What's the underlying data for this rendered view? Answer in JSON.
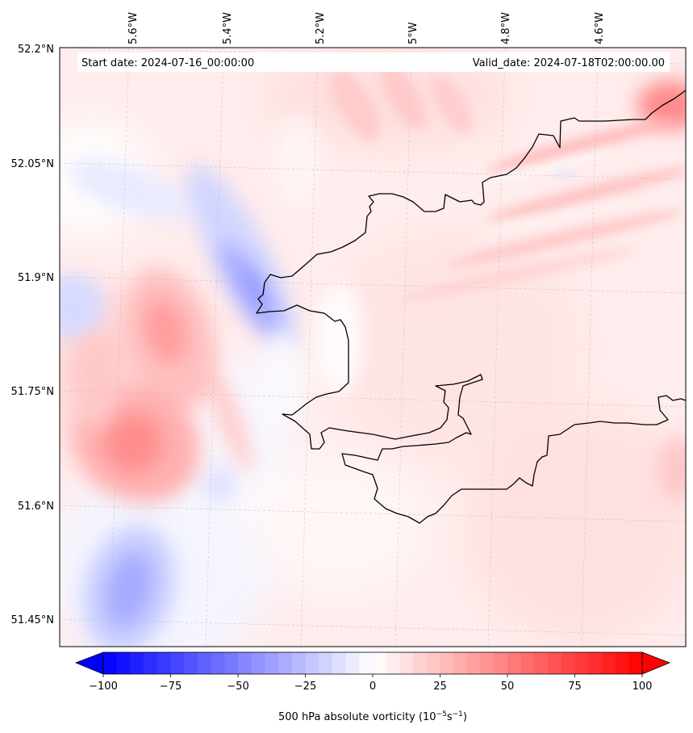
{
  "header": {
    "start_label": "Start date: 2024-07-16_00:00:00",
    "valid_label": "Valid_date: 2024-07-18T02:00:00.00"
  },
  "map": {
    "lon_labels": [
      "5.6°W",
      "5.4°W",
      "5.2°W",
      "5°W",
      "4.8°W",
      "4.6°W"
    ],
    "lat_labels": [
      "52.2°N",
      "52.05°N",
      "51.9°N",
      "51.75°N",
      "51.6°N",
      "51.45°N"
    ],
    "field_name": "500 hPa absolute vorticity",
    "colors": {
      "negative": "#0000ff",
      "neutral": "#ffffff",
      "positive": "#ff0000",
      "coastline": "#000000",
      "grid": "#b0b0b0"
    }
  },
  "colorbar": {
    "label_text": "500 hPa absolute vorticity (10",
    "label_sup1": "−5",
    "label_mid": "s",
    "label_sup2": "−1",
    "label_close": ")",
    "min": -100,
    "max": 100,
    "tick_labels": [
      "−100",
      "−75",
      "−50",
      "−25",
      "0",
      "25",
      "50",
      "75",
      "100"
    ],
    "tick_values": [
      -100,
      -75,
      -50,
      -25,
      0,
      25,
      50,
      75,
      100
    ],
    "extend": "both"
  }
}
